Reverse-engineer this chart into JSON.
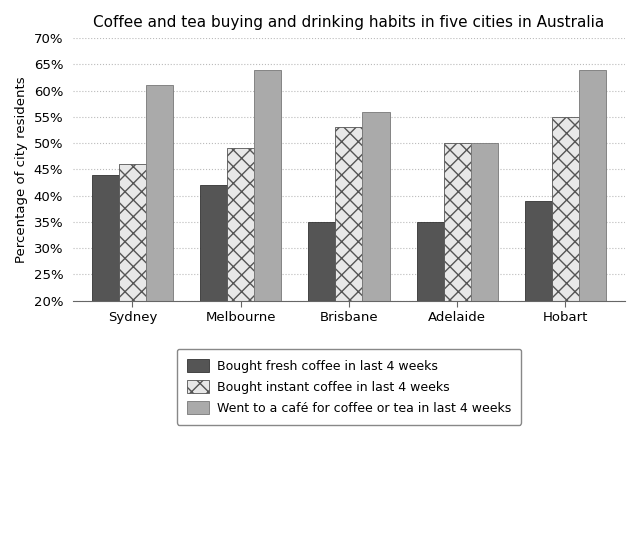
{
  "title": "Coffee and tea buying and drinking habits in five cities in Australia",
  "cities": [
    "Sydney",
    "Melbourne",
    "Brisbane",
    "Adelaide",
    "Hobart"
  ],
  "series": [
    {
      "label": "Bought fresh coffee in last 4 weeks",
      "values": [
        44,
        42,
        35,
        35,
        39
      ],
      "color": "#555555",
      "hatch": null,
      "edgecolor": "#333333"
    },
    {
      "label": "Bought instant coffee in last 4 weeks",
      "values": [
        46,
        49,
        53,
        50,
        55
      ],
      "color": "#e8e8e8",
      "hatch": "xx",
      "edgecolor": "#555555"
    },
    {
      "label": "Went to a café for coffee or tea in last 4 weeks",
      "values": [
        61,
        64,
        56,
        50,
        64
      ],
      "color": "#aaaaaa",
      "hatch": null,
      "edgecolor": "#777777"
    }
  ],
  "ylabel": "Percentage of city residents",
  "ylim": [
    20,
    70
  ],
  "yticks": [
    20,
    25,
    30,
    35,
    40,
    45,
    50,
    55,
    60,
    65,
    70
  ],
  "ytick_labels": [
    "20%",
    "25%",
    "30%",
    "35%",
    "40%",
    "45%",
    "50%",
    "55%",
    "60%",
    "65%",
    "70%"
  ],
  "bar_width": 0.25,
  "background_color": "#ffffff",
  "grid_color": "#bbbbbb",
  "title_fontsize": 11,
  "legend_fontsize": 9,
  "axis_fontsize": 9.5,
  "ylabel_fontsize": 9.5
}
